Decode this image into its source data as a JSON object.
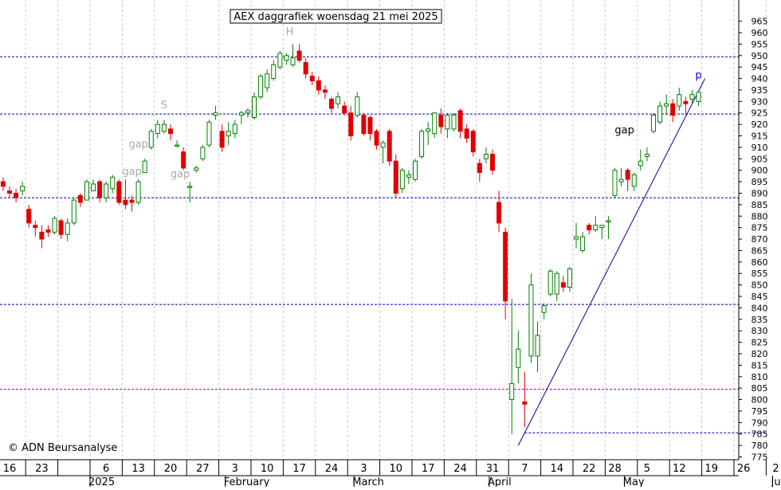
{
  "chart_data": {
    "type": "candlestick",
    "title": "AEX daggrafiek woensdag 21 mei 2025",
    "copyright": "© ADN Beursanalyse",
    "ylim": [
      770,
      969
    ],
    "y_ticks": [
      775,
      780,
      785,
      790,
      795,
      800,
      805,
      810,
      815,
      820,
      825,
      830,
      835,
      840,
      845,
      850,
      855,
      860,
      865,
      870,
      875,
      880,
      885,
      890,
      895,
      900,
      905,
      910,
      915,
      920,
      925,
      930,
      935,
      940,
      945,
      950,
      955,
      960,
      965
    ],
    "x_ticks": [
      {
        "label": "16",
        "day": -1
      },
      {
        "label": "23",
        "day": 4
      },
      {
        "label": "6",
        "day": 14
      },
      {
        "label": "13",
        "day": 19
      },
      {
        "label": "20",
        "day": 24
      },
      {
        "label": "27",
        "day": 29
      },
      {
        "label": "3",
        "day": 34
      },
      {
        "label": "10",
        "day": 39
      },
      {
        "label": "17",
        "day": 44
      },
      {
        "label": "24",
        "day": 49
      },
      {
        "label": "3",
        "day": 54
      },
      {
        "label": "10",
        "day": 59
      },
      {
        "label": "17",
        "day": 64
      },
      {
        "label": "24",
        "day": 69
      },
      {
        "label": "31",
        "day": 74
      },
      {
        "label": "7",
        "day": 79
      },
      {
        "label": "14",
        "day": 84
      },
      {
        "label": "22",
        "day": 89
      },
      {
        "label": "28",
        "day": 93
      },
      {
        "label": "5",
        "day": 98
      },
      {
        "label": "12",
        "day": 103
      },
      {
        "label": "19",
        "day": 108
      },
      {
        "label": "26",
        "day": 113
      },
      {
        "label": "2",
        "day": 118
      }
    ],
    "x_sep_days": [
      1.5,
      6.5,
      11.5,
      16.5,
      21.5,
      26.5,
      31.5,
      36.5,
      41.5,
      46.5,
      51.5,
      56.5,
      61.5,
      66.5,
      71.5,
      76.5,
      81.5,
      86.5,
      91.5,
      96.5,
      101.5,
      106.5,
      111.5,
      116.5
    ],
    "month_labels": [
      {
        "label": "2025",
        "day": 12
      },
      {
        "label": "February",
        "day": 33
      },
      {
        "label": "March",
        "day": 53
      },
      {
        "label": "April",
        "day": 74
      },
      {
        "label": "May",
        "day": 95
      },
      {
        "label": "June",
        "day": 118
      }
    ],
    "month_sep_days": [
      11.5,
      32.5,
      52.5,
      73.5,
      94.5,
      117.5
    ],
    "hlines": [
      {
        "y": 949.5,
        "color": "#0000a0"
      },
      {
        "y": 924.5,
        "color": "#0000a0"
      },
      {
        "y": 888,
        "color": "#0000a0"
      },
      {
        "y": 841.5,
        "color": "#0000a0"
      },
      {
        "y": 804.5,
        "color": "#a000a0"
      }
    ],
    "segments": [
      {
        "d0": 79,
        "y0": 785.5,
        "d1": 116.5,
        "y1": 785.5,
        "color": "#0000a0",
        "dashed": true
      },
      {
        "d0": 78,
        "y0": 780,
        "d1": 107,
        "y1": 940,
        "color": "#0000a0",
        "dashed": false
      }
    ],
    "annotations": [
      {
        "text": "S",
        "day": 23,
        "y": 927,
        "color": "#aaaaaa"
      },
      {
        "text": "H",
        "day": 42.5,
        "y": 959,
        "color": "#aaaaaa"
      },
      {
        "text": "gap",
        "day": 19,
        "y": 910,
        "color": "#aaaaaa"
      },
      {
        "text": "gap",
        "day": 18,
        "y": 898,
        "color": "#aaaaaa"
      },
      {
        "text": "gap",
        "day": 25.5,
        "y": 897,
        "color": "#aaaaaa"
      },
      {
        "text": "gap",
        "day": 94.5,
        "y": 916,
        "color": "#000000"
      },
      {
        "text": "p",
        "day": 106,
        "y": 940,
        "color": "#0000ff"
      }
    ],
    "candles": [
      {
        "d": -2,
        "o": 895,
        "h": 897,
        "l": 891,
        "c": 893
      },
      {
        "d": -1,
        "o": 891,
        "h": 893,
        "l": 888,
        "c": 890
      },
      {
        "d": 0,
        "o": 890,
        "h": 892,
        "l": 886,
        "c": 888
      },
      {
        "d": 1,
        "o": 891,
        "h": 895,
        "l": 889,
        "c": 893
      },
      {
        "d": 2,
        "o": 883,
        "h": 885,
        "l": 875,
        "c": 877
      },
      {
        "d": 3,
        "o": 876,
        "h": 878,
        "l": 871,
        "c": 875
      },
      {
        "d": 4,
        "o": 873,
        "h": 876,
        "l": 866,
        "c": 870
      },
      {
        "d": 5,
        "o": 874,
        "h": 876,
        "l": 871,
        "c": 873
      },
      {
        "d": 6,
        "o": 873,
        "h": 880,
        "l": 872,
        "c": 879
      },
      {
        "d": 7,
        "o": 878,
        "h": 879,
        "l": 870,
        "c": 872
      },
      {
        "d": 8,
        "o": 872,
        "h": 879,
        "l": 869,
        "c": 877
      },
      {
        "d": 9,
        "o": 877,
        "h": 888,
        "l": 876,
        "c": 887
      },
      {
        "d": 10,
        "o": 889,
        "h": 890,
        "l": 884,
        "c": 886
      },
      {
        "d": 11,
        "o": 887,
        "h": 896,
        "l": 887,
        "c": 895
      },
      {
        "d": 12,
        "o": 891,
        "h": 896,
        "l": 891,
        "c": 894
      },
      {
        "d": 13,
        "o": 895,
        "h": 896,
        "l": 886,
        "c": 888
      },
      {
        "d": 14,
        "o": 888,
        "h": 895,
        "l": 886,
        "c": 894
      },
      {
        "d": 15,
        "o": 892,
        "h": 898,
        "l": 890,
        "c": 897
      },
      {
        "d": 16,
        "o": 895,
        "h": 896,
        "l": 885,
        "c": 886
      },
      {
        "d": 17,
        "o": 887,
        "h": 896,
        "l": 883,
        "c": 885
      },
      {
        "d": 18,
        "o": 887,
        "h": 889,
        "l": 882,
        "c": 886
      },
      {
        "d": 19,
        "o": 886,
        "h": 896,
        "l": 885,
        "c": 895
      },
      {
        "d": 20,
        "o": 899,
        "h": 905,
        "l": 899,
        "c": 904
      },
      {
        "d": 21,
        "o": 910,
        "h": 918,
        "l": 909,
        "c": 917
      },
      {
        "d": 22,
        "o": 916,
        "h": 922,
        "l": 914,
        "c": 920
      },
      {
        "d": 23,
        "o": 917,
        "h": 922,
        "l": 916,
        "c": 920
      },
      {
        "d": 24,
        "o": 918,
        "h": 920,
        "l": 913,
        "c": 916
      },
      {
        "d": 25,
        "o": 911,
        "h": 913,
        "l": 910,
        "c": 911
      },
      {
        "d": 26,
        "o": 908,
        "h": 910,
        "l": 900,
        "c": 901
      },
      {
        "d": 27,
        "o": 893,
        "h": 895,
        "l": 886,
        "c": 893
      },
      {
        "d": 28,
        "o": 900,
        "h": 902,
        "l": 899,
        "c": 901
      },
      {
        "d": 29,
        "o": 905,
        "h": 911,
        "l": 904,
        "c": 910
      },
      {
        "d": 30,
        "o": 911,
        "h": 922,
        "l": 910,
        "c": 921
      },
      {
        "d": 31,
        "o": 924,
        "h": 928,
        "l": 922,
        "c": 925
      },
      {
        "d": 32,
        "o": 917,
        "h": 920,
        "l": 908,
        "c": 910
      },
      {
        "d": 33,
        "o": 915,
        "h": 921,
        "l": 911,
        "c": 917
      },
      {
        "d": 34,
        "o": 916,
        "h": 922,
        "l": 914,
        "c": 920
      },
      {
        "d": 35,
        "o": 924,
        "h": 926,
        "l": 920,
        "c": 925
      },
      {
        "d": 36,
        "o": 925,
        "h": 927,
        "l": 923,
        "c": 926
      },
      {
        "d": 37,
        "o": 923,
        "h": 934,
        "l": 922,
        "c": 932
      },
      {
        "d": 38,
        "o": 932,
        "h": 942,
        "l": 931,
        "c": 941
      },
      {
        "d": 39,
        "o": 936,
        "h": 944,
        "l": 934,
        "c": 942
      },
      {
        "d": 40,
        "o": 940,
        "h": 948,
        "l": 939,
        "c": 946
      },
      {
        "d": 41,
        "o": 945,
        "h": 952,
        "l": 944,
        "c": 951
      },
      {
        "d": 42,
        "o": 948,
        "h": 951,
        "l": 946,
        "c": 950
      },
      {
        "d": 43,
        "o": 946,
        "h": 955,
        "l": 945,
        "c": 949
      },
      {
        "d": 44,
        "o": 952,
        "h": 955,
        "l": 947,
        "c": 948
      },
      {
        "d": 45,
        "o": 947,
        "h": 949,
        "l": 940,
        "c": 942
      },
      {
        "d": 46,
        "o": 941,
        "h": 943,
        "l": 937,
        "c": 939
      },
      {
        "d": 47,
        "o": 939,
        "h": 941,
        "l": 933,
        "c": 935
      },
      {
        "d": 48,
        "o": 935,
        "h": 937,
        "l": 931,
        "c": 934
      },
      {
        "d": 49,
        "o": 931,
        "h": 932,
        "l": 925,
        "c": 927
      },
      {
        "d": 50,
        "o": 929,
        "h": 934,
        "l": 927,
        "c": 932
      },
      {
        "d": 51,
        "o": 928,
        "h": 930,
        "l": 924,
        "c": 925
      },
      {
        "d": 52,
        "o": 925,
        "h": 928,
        "l": 913,
        "c": 915
      },
      {
        "d": 53,
        "o": 924,
        "h": 934,
        "l": 923,
        "c": 932
      },
      {
        "d": 54,
        "o": 924,
        "h": 925,
        "l": 915,
        "c": 916
      },
      {
        "d": 55,
        "o": 923,
        "h": 924,
        "l": 913,
        "c": 916
      },
      {
        "d": 56,
        "o": 917,
        "h": 918,
        "l": 909,
        "c": 911
      },
      {
        "d": 57,
        "o": 910,
        "h": 913,
        "l": 903,
        "c": 912
      },
      {
        "d": 58,
        "o": 917,
        "h": 918,
        "l": 902,
        "c": 904
      },
      {
        "d": 59,
        "o": 904,
        "h": 907,
        "l": 888,
        "c": 890
      },
      {
        "d": 60,
        "o": 892,
        "h": 901,
        "l": 890,
        "c": 900
      },
      {
        "d": 61,
        "o": 897,
        "h": 900,
        "l": 894,
        "c": 898
      },
      {
        "d": 62,
        "o": 896,
        "h": 905,
        "l": 895,
        "c": 904
      },
      {
        "d": 63,
        "o": 906,
        "h": 918,
        "l": 905,
        "c": 917
      },
      {
        "d": 64,
        "o": 917,
        "h": 921,
        "l": 911,
        "c": 918
      },
      {
        "d": 65,
        "o": 916,
        "h": 925,
        "l": 914,
        "c": 925
      },
      {
        "d": 66,
        "o": 924,
        "h": 927,
        "l": 916,
        "c": 919
      },
      {
        "d": 67,
        "o": 918,
        "h": 925,
        "l": 914,
        "c": 924
      },
      {
        "d": 68,
        "o": 918,
        "h": 925,
        "l": 917,
        "c": 924
      },
      {
        "d": 69,
        "o": 926,
        "h": 927,
        "l": 914,
        "c": 917
      },
      {
        "d": 70,
        "o": 918,
        "h": 920,
        "l": 912,
        "c": 914
      },
      {
        "d": 71,
        "o": 917,
        "h": 918,
        "l": 906,
        "c": 908
      },
      {
        "d": 72,
        "o": 903,
        "h": 905,
        "l": 895,
        "c": 899
      },
      {
        "d": 73,
        "o": 905,
        "h": 910,
        "l": 903,
        "c": 907
      },
      {
        "d": 74,
        "o": 907,
        "h": 909,
        "l": 898,
        "c": 900
      },
      {
        "d": 75,
        "o": 886,
        "h": 891,
        "l": 873,
        "c": 877
      },
      {
        "d": 76,
        "o": 873,
        "h": 875,
        "l": 835,
        "c": 843
      },
      {
        "d": 77,
        "o": 800,
        "h": 844,
        "l": 785,
        "c": 807
      },
      {
        "d": 78,
        "o": 814,
        "h": 830,
        "l": 807,
        "c": 822
      },
      {
        "d": 79,
        "o": 799,
        "h": 812,
        "l": 788,
        "c": 798
      },
      {
        "d": 80,
        "o": 819,
        "h": 855,
        "l": 816,
        "c": 850
      },
      {
        "d": 81,
        "o": 819,
        "h": 834,
        "l": 812,
        "c": 828
      },
      {
        "d": 82,
        "o": 838,
        "h": 842,
        "l": 835,
        "c": 841
      },
      {
        "d": 83,
        "o": 846,
        "h": 857,
        "l": 845,
        "c": 856
      },
      {
        "d": 84,
        "o": 846,
        "h": 856,
        "l": 843,
        "c": 855
      },
      {
        "d": 85,
        "o": 851,
        "h": 854,
        "l": 847,
        "c": 849
      },
      {
        "d": 86,
        "o": 849,
        "h": 858,
        "l": 847,
        "c": 857
      },
      {
        "d": 87,
        "o": 870,
        "h": 877,
        "l": 866,
        "c": 871
      },
      {
        "d": 88,
        "o": 865,
        "h": 873,
        "l": 864,
        "c": 871
      },
      {
        "d": 89,
        "o": 876,
        "h": 877,
        "l": 872,
        "c": 874
      },
      {
        "d": 90,
        "o": 874,
        "h": 880,
        "l": 873,
        "c": 876
      },
      {
        "d": 91,
        "o": 875,
        "h": 876,
        "l": 870,
        "c": 876
      },
      {
        "d": 92,
        "o": 878,
        "h": 880,
        "l": 870,
        "c": 878
      },
      {
        "d": 93,
        "o": 889,
        "h": 901,
        "l": 888,
        "c": 900
      },
      {
        "d": 94,
        "o": 895,
        "h": 901,
        "l": 893,
        "c": 896
      },
      {
        "d": 95,
        "o": 900,
        "h": 901,
        "l": 891,
        "c": 896
      },
      {
        "d": 96,
        "o": 893,
        "h": 899,
        "l": 891,
        "c": 898
      },
      {
        "d": 97,
        "o": 902,
        "h": 909,
        "l": 900,
        "c": 904
      },
      {
        "d": 98,
        "o": 906,
        "h": 910,
        "l": 904,
        "c": 907
      },
      {
        "d": 99,
        "o": 917,
        "h": 925,
        "l": 916,
        "c": 924
      },
      {
        "d": 100,
        "o": 921,
        "h": 930,
        "l": 920,
        "c": 928
      },
      {
        "d": 101,
        "o": 928,
        "h": 933,
        "l": 924,
        "c": 929
      },
      {
        "d": 102,
        "o": 929,
        "h": 931,
        "l": 921,
        "c": 924
      },
      {
        "d": 103,
        "o": 928,
        "h": 936,
        "l": 926,
        "c": 933
      },
      {
        "d": 104,
        "o": 930,
        "h": 932,
        "l": 924,
        "c": 929
      },
      {
        "d": 105,
        "o": 931,
        "h": 935,
        "l": 929,
        "c": 933
      },
      {
        "d": 106,
        "o": 930,
        "h": 934,
        "l": 928,
        "c": 934
      }
    ]
  }
}
